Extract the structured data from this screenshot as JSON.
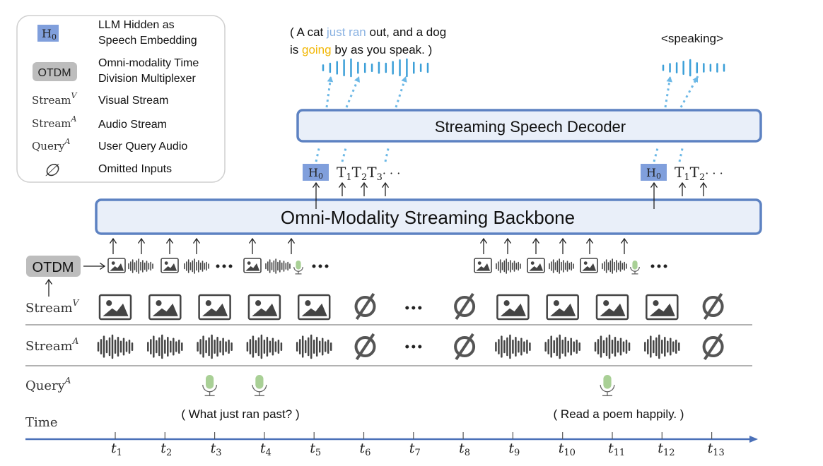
{
  "legend": {
    "items": [
      {
        "symbol": "H",
        "symbol_sub": "0",
        "lines": [
          "LLM Hidden as",
          "Speech Embedding"
        ]
      },
      {
        "symbol": "OTDM",
        "lines": [
          "Omni-modality Time",
          "Division Multiplexer"
        ]
      },
      {
        "symbol": "Stream",
        "symbol_sup": "V",
        "lines": [
          "Visual Stream"
        ]
      },
      {
        "symbol": "Stream",
        "symbol_sup": "A",
        "lines": [
          "Audio Stream"
        ]
      },
      {
        "symbol": "Query",
        "symbol_sup": "A",
        "lines": [
          "User Query Audio"
        ]
      },
      {
        "symbol": "∅",
        "lines": [
          "Omitted Inputs"
        ]
      }
    ]
  },
  "output_text": {
    "line1": [
      "( A cat ",
      "just ran",
      " out, and a dog"
    ],
    "line2": [
      "is ",
      "going",
      " by as you speak. )"
    ],
    "speaking": "<speaking>"
  },
  "decoder": {
    "label": "Streaming Speech Decoder"
  },
  "backbone": {
    "label": "Omni-Modality Streaming Backbone"
  },
  "tokens_left": {
    "h": "H",
    "h_sub": "0",
    "t": [
      [
        "T",
        "1"
      ],
      [
        "T",
        "2"
      ],
      [
        "T",
        "3"
      ]
    ],
    "ellipsis": "· · ·"
  },
  "tokens_right": {
    "h": "H",
    "h_sub": "0",
    "t": [
      [
        "T",
        "1"
      ],
      [
        "T",
        "2"
      ]
    ],
    "ellipsis": "· · ·"
  },
  "otdm": {
    "label": "OTDM"
  },
  "rows": {
    "stream_v": {
      "base": "Stream",
      "sup": "V"
    },
    "stream_a": {
      "base": "Stream",
      "sup": "A"
    },
    "query_a": {
      "base": "Query",
      "sup": "A"
    },
    "time": {
      "base": "Time"
    }
  },
  "queries": {
    "q1": "( What just ran past? )",
    "q2": "( Read a poem happily. )"
  },
  "time_axis": {
    "base": "t",
    "ticks": [
      "1",
      "2",
      "3",
      "4",
      "5",
      "6",
      "7",
      "8",
      "9",
      "10",
      "11",
      "12",
      "13"
    ]
  },
  "stream_slots": [
    "input",
    "input",
    "input",
    "input",
    "input",
    "omitted",
    "ellipsis",
    "omitted",
    "input",
    "input",
    "input",
    "input",
    "omitted"
  ],
  "query_slots": [
    3,
    4,
    11
  ],
  "colors": {
    "box_fill": "#e9eff9",
    "box_stroke": "#5d82c2",
    "h0_fill": "#809fdc",
    "otdm_fill": "#bdbdbd",
    "highlight_blue": "#8ab2e2",
    "highlight_yellow": "#f2b705",
    "wave_blue": "#3b9fd8",
    "dotted_arrow": "#6cb8e6",
    "mic_green": "#a9d096",
    "axis": "#4a70b8",
    "icon_gray": "#444"
  }
}
